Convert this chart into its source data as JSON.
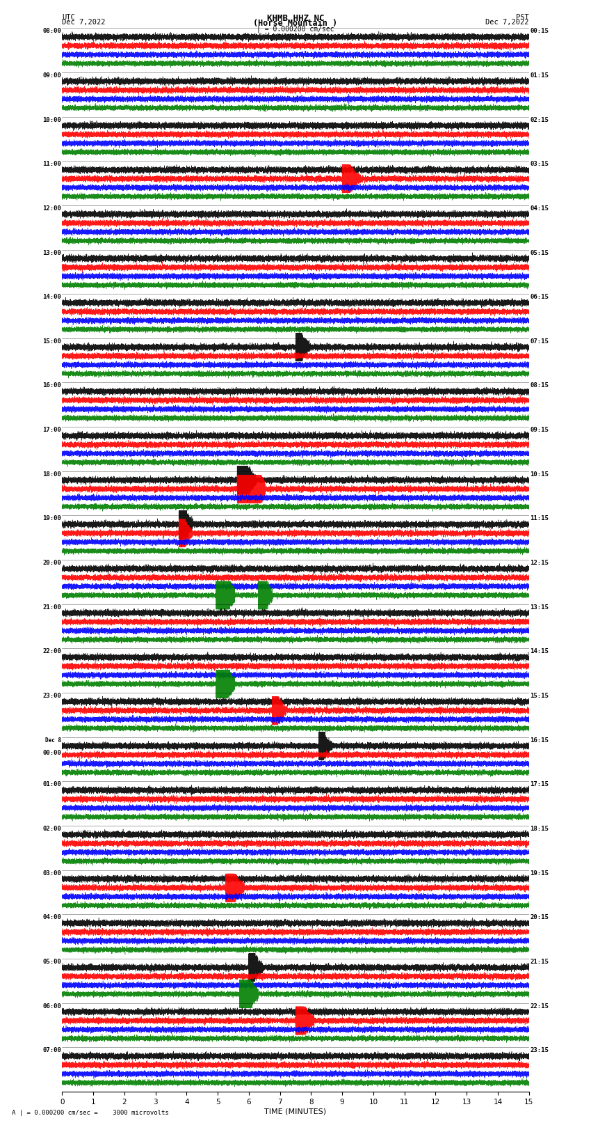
{
  "title_line1": "KHMB HHZ NC",
  "title_line2": "(Horse Mountain )",
  "scale_label": "| = 0.000200 cm/sec",
  "bottom_label": "A | = 0.000200 cm/sec =    3000 microvolts",
  "xlabel": "TIME (MINUTES)",
  "left_header_line1": "UTC",
  "left_header_line2": "Dec 7,2022",
  "right_header_line1": "PST",
  "right_header_line2": "Dec 7,2022",
  "utc_times": [
    "08:00",
    "09:00",
    "10:00",
    "11:00",
    "12:00",
    "13:00",
    "14:00",
    "15:00",
    "16:00",
    "17:00",
    "18:00",
    "19:00",
    "20:00",
    "21:00",
    "22:00",
    "23:00",
    "Dec 8\n00:00",
    "01:00",
    "02:00",
    "03:00",
    "04:00",
    "05:00",
    "06:00",
    "07:00"
  ],
  "pst_times": [
    "00:15",
    "01:15",
    "02:15",
    "03:15",
    "04:15",
    "05:15",
    "06:15",
    "07:15",
    "08:15",
    "09:15",
    "10:15",
    "11:15",
    "12:15",
    "13:15",
    "14:15",
    "15:15",
    "16:15",
    "17:15",
    "18:15",
    "19:15",
    "20:15",
    "21:15",
    "22:15",
    "23:15"
  ],
  "num_rows": 24,
  "traces_per_row": 4,
  "colors": [
    "black",
    "red",
    "blue",
    "green"
  ],
  "bg_color": "white",
  "minutes": 15,
  "sample_rate": 20,
  "amplitude_scale": 1.0
}
